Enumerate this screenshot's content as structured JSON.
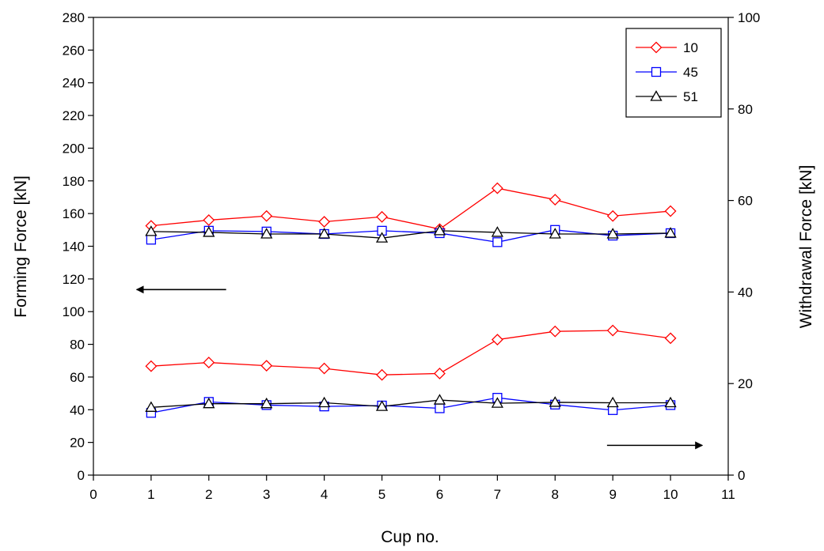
{
  "chart_data": {
    "type": "line",
    "xlabel": "Cup no.",
    "ylabel_left": "Forming Force [kN]",
    "ylabel_right": "Withdrawal Force [kN]",
    "xlim": [
      0,
      11
    ],
    "xticks": [
      0,
      1,
      2,
      3,
      4,
      5,
      6,
      7,
      8,
      9,
      10,
      11
    ],
    "ylim_left": [
      0,
      280
    ],
    "yticks_left": [
      0,
      20,
      40,
      60,
      80,
      100,
      120,
      140,
      160,
      180,
      200,
      220,
      240,
      260,
      280
    ],
    "ylim_right": [
      0,
      100
    ],
    "yticks_right": [
      0,
      20,
      40,
      60,
      80,
      100
    ],
    "grid": false,
    "legend_position": "top-right",
    "legend": [
      "10",
      "45",
      "51"
    ],
    "x": [
      1,
      2,
      3,
      4,
      5,
      6,
      7,
      8,
      9,
      10
    ],
    "series": [
      {
        "name": "10",
        "axis": "left",
        "marker": "diamond",
        "color": "#ff0000",
        "values": [
          152.5,
          156,
          158.5,
          155,
          158,
          150.5,
          175.5,
          168.5,
          158.5,
          161.5
        ]
      },
      {
        "name": "45",
        "axis": "left",
        "marker": "square",
        "color": "#0000ff",
        "values": [
          144,
          149.5,
          149,
          147.5,
          149.5,
          148,
          142.5,
          150,
          146.5,
          148
        ]
      },
      {
        "name": "51",
        "axis": "left",
        "marker": "triangle",
        "color": "#000000",
        "values": [
          149,
          148.5,
          147.5,
          147.5,
          145,
          149.5,
          148.5,
          147.5,
          147.5,
          148
        ]
      },
      {
        "name": "10",
        "axis": "right",
        "marker": "diamond",
        "color": "#ff0000",
        "values": [
          23.8,
          24.6,
          23.9,
          23.3,
          21.9,
          22.2,
          29.6,
          31.4,
          31.6,
          29.9
        ]
      },
      {
        "name": "45",
        "axis": "right",
        "marker": "square",
        "color": "#0000ff",
        "values": [
          13.6,
          16.0,
          15.3,
          15.0,
          15.2,
          14.6,
          16.9,
          15.4,
          14.2,
          15.3
        ]
      },
      {
        "name": "51",
        "axis": "right",
        "marker": "triangle",
        "color": "#000000",
        "values": [
          14.8,
          15.6,
          15.6,
          15.8,
          15.0,
          16.4,
          15.7,
          15.9,
          15.8,
          15.8
        ]
      }
    ],
    "annotations": [
      {
        "kind": "arrow",
        "points_to": "left-axis",
        "x_from": 2.3,
        "x_to": 0.75,
        "axis": "left",
        "y": 113.5
      },
      {
        "kind": "arrow",
        "points_to": "right-axis",
        "x_from": 8.9,
        "x_to": 10.55,
        "axis": "right",
        "y": 6.5
      }
    ]
  }
}
